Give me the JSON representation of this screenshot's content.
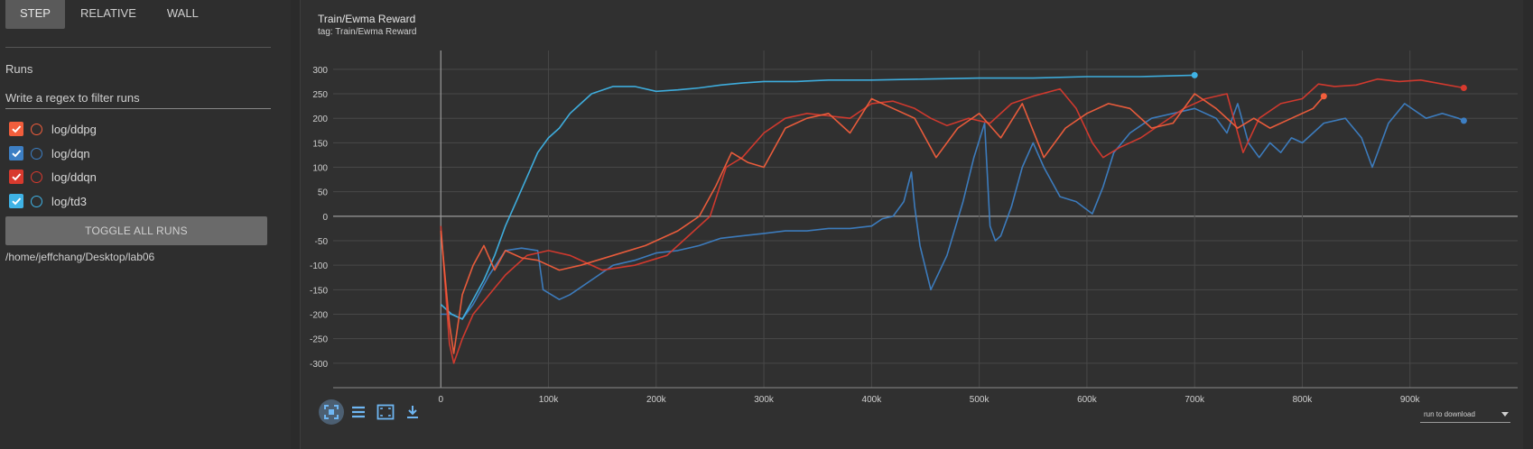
{
  "sidebar": {
    "xaxis_tabs": [
      "STEP",
      "RELATIVE",
      "WALL"
    ],
    "active_tab": "STEP",
    "runs_label": "Runs",
    "filter_placeholder": "Write a regex to filter runs",
    "runs": [
      {
        "name": "log/ddpg",
        "color": "#f25e3c",
        "checked": true
      },
      {
        "name": "log/dqn",
        "color": "#3d7fc4",
        "checked": true
      },
      {
        "name": "log/ddqn",
        "color": "#d83a2e",
        "checked": true
      },
      {
        "name": "log/td3",
        "color": "#3fb3e6",
        "checked": true
      }
    ],
    "toggle_all_label": "TOGGLE ALL RUNS",
    "logdir": "/home/jeffchang/Desktop/lab06"
  },
  "card": {
    "title": "Train/Ewma Reward",
    "tag": "tag: Train/Ewma Reward",
    "toolbar_icons": [
      "fit-domain-icon",
      "toggle-log-scale-icon",
      "expand-chart-icon",
      "download-icon"
    ],
    "download_select": "run to download"
  },
  "chart_data": {
    "type": "line",
    "title": "Train/Ewma Reward",
    "xlabel": "",
    "ylabel": "",
    "xlim": [
      -100000,
      1000000
    ],
    "ylim": [
      -350,
      320
    ],
    "xticks": [
      0,
      100000,
      200000,
      300000,
      400000,
      500000,
      600000,
      700000,
      800000,
      900000
    ],
    "xtick_labels": [
      "0",
      "100k",
      "200k",
      "300k",
      "400k",
      "500k",
      "600k",
      "700k",
      "800k",
      "900k"
    ],
    "yticks": [
      -300,
      -250,
      -200,
      -150,
      -100,
      -50,
      0,
      50,
      100,
      150,
      200,
      250,
      300
    ],
    "grid": true,
    "series": [
      {
        "name": "log/dqn",
        "color": "#3d7fc4",
        "x": [
          0,
          10000,
          20000,
          30000,
          45000,
          60000,
          75000,
          90000,
          95000,
          110000,
          120000,
          140000,
          160000,
          180000,
          200000,
          220000,
          240000,
          260000,
          280000,
          300000,
          320000,
          340000,
          360000,
          380000,
          400000,
          410000,
          420000,
          430000,
          437000,
          440000,
          445000,
          455000,
          470000,
          485000,
          495000,
          505000,
          510000,
          515000,
          520000,
          530000,
          540000,
          550000,
          560000,
          575000,
          590000,
          605000,
          615000,
          625000,
          640000,
          660000,
          680000,
          700000,
          720000,
          730000,
          740000,
          750000,
          760000,
          770000,
          780000,
          790000,
          800000,
          820000,
          840000,
          855000,
          865000,
          880000,
          895000,
          915000,
          930000,
          945000,
          950000
        ],
        "y": [
          -200,
          -200,
          -210,
          -180,
          -120,
          -70,
          -65,
          -70,
          -150,
          -170,
          -160,
          -130,
          -100,
          -90,
          -75,
          -70,
          -60,
          -45,
          -40,
          -35,
          -30,
          -30,
          -25,
          -25,
          -20,
          -5,
          0,
          30,
          90,
          20,
          -60,
          -150,
          -80,
          30,
          120,
          190,
          -20,
          -50,
          -40,
          20,
          100,
          150,
          100,
          40,
          30,
          5,
          60,
          130,
          170,
          200,
          210,
          220,
          200,
          170,
          230,
          150,
          120,
          150,
          130,
          160,
          150,
          190,
          200,
          160,
          100,
          190,
          230,
          200,
          210,
          200,
          195
        ]
      },
      {
        "name": "log/td3",
        "color": "#3fb3e6",
        "x": [
          0,
          10000,
          20000,
          30000,
          40000,
          50000,
          60000,
          70000,
          80000,
          90000,
          100000,
          110000,
          120000,
          140000,
          160000,
          180000,
          200000,
          220000,
          240000,
          260000,
          280000,
          300000,
          330000,
          360000,
          400000,
          450000,
          500000,
          550000,
          600000,
          650000,
          700000
        ],
        "y": [
          -180,
          -200,
          -210,
          -170,
          -130,
          -80,
          -20,
          30,
          80,
          130,
          160,
          180,
          210,
          250,
          265,
          265,
          255,
          258,
          262,
          268,
          272,
          275,
          275,
          278,
          278,
          280,
          282,
          282,
          285,
          285,
          288
        ]
      },
      {
        "name": "log/ddqn",
        "color": "#d83a2e",
        "x": [
          0,
          8000,
          12000,
          20000,
          30000,
          45000,
          60000,
          80000,
          100000,
          120000,
          150000,
          180000,
          210000,
          230000,
          250000,
          265000,
          280000,
          300000,
          320000,
          340000,
          360000,
          380000,
          400000,
          420000,
          440000,
          455000,
          470000,
          490000,
          510000,
          530000,
          550000,
          575000,
          590000,
          605000,
          615000,
          630000,
          650000,
          670000,
          690000,
          710000,
          730000,
          745000,
          760000,
          780000,
          800000,
          815000,
          830000,
          850000,
          870000,
          890000,
          910000,
          930000,
          950000
        ],
        "y": [
          -20,
          -260,
          -300,
          -250,
          -200,
          -160,
          -120,
          -80,
          -70,
          -80,
          -110,
          -100,
          -80,
          -40,
          0,
          100,
          120,
          170,
          200,
          210,
          205,
          200,
          230,
          235,
          220,
          200,
          185,
          200,
          190,
          230,
          245,
          260,
          220,
          150,
          120,
          140,
          160,
          190,
          220,
          240,
          250,
          130,
          200,
          230,
          240,
          270,
          265,
          268,
          280,
          275,
          278,
          270,
          262
        ]
      },
      {
        "name": "log/ddpg",
        "color": "#f25e3c",
        "x": [
          0,
          8000,
          12000,
          20000,
          30000,
          40000,
          50000,
          60000,
          75000,
          90000,
          110000,
          130000,
          160000,
          190000,
          220000,
          240000,
          255000,
          270000,
          285000,
          300000,
          320000,
          340000,
          360000,
          380000,
          400000,
          420000,
          440000,
          460000,
          480000,
          500000,
          520000,
          540000,
          560000,
          580000,
          600000,
          620000,
          640000,
          660000,
          680000,
          700000,
          720000,
          740000,
          755000,
          770000,
          790000,
          810000,
          820000
        ],
        "y": [
          -30,
          -220,
          -280,
          -160,
          -100,
          -60,
          -110,
          -70,
          -85,
          -90,
          -110,
          -100,
          -80,
          -60,
          -30,
          0,
          60,
          130,
          110,
          100,
          180,
          200,
          210,
          170,
          240,
          220,
          200,
          120,
          180,
          210,
          160,
          230,
          120,
          180,
          210,
          230,
          220,
          180,
          190,
          250,
          220,
          180,
          200,
          180,
          200,
          220,
          245
        ]
      }
    ]
  }
}
